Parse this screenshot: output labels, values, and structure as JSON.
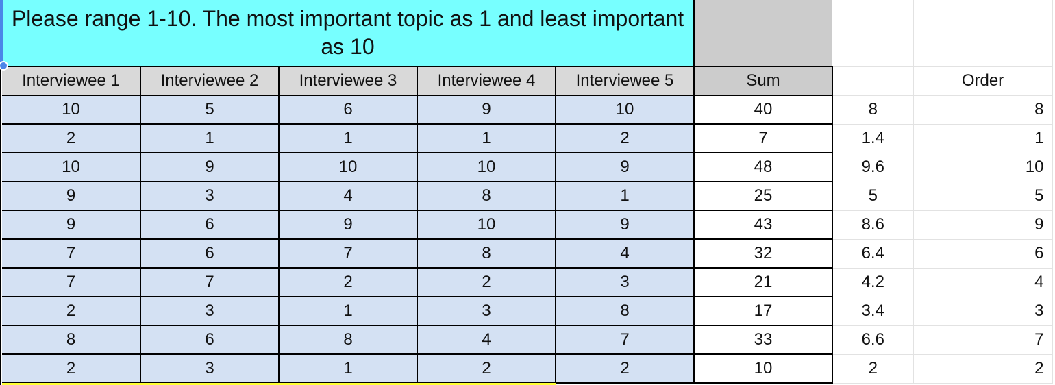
{
  "title": "Please range 1-10. The most important topic as 1 and least important as 10",
  "headers": {
    "interviewees": [
      "Interviewee 1",
      "Interviewee 2",
      "Interviewee 3",
      "Interviewee 4",
      "Interviewee 5"
    ],
    "sum": "Sum",
    "order": "Order"
  },
  "rows": [
    {
      "scores": [
        "10",
        "5",
        "6",
        "9",
        "10"
      ],
      "sum": "40",
      "average": "8",
      "order": "8"
    },
    {
      "scores": [
        "2",
        "1",
        "1",
        "1",
        "2"
      ],
      "sum": "7",
      "average": "1.4",
      "order": "1"
    },
    {
      "scores": [
        "10",
        "9",
        "10",
        "10",
        "9"
      ],
      "sum": "48",
      "average": "9.6",
      "order": "10"
    },
    {
      "scores": [
        "9",
        "3",
        "4",
        "8",
        "1"
      ],
      "sum": "25",
      "average": "5",
      "order": "5"
    },
    {
      "scores": [
        "9",
        "6",
        "9",
        "10",
        "9"
      ],
      "sum": "43",
      "average": "8.6",
      "order": "9"
    },
    {
      "scores": [
        "7",
        "6",
        "7",
        "8",
        "4"
      ],
      "sum": "32",
      "average": "6.4",
      "order": "6"
    },
    {
      "scores": [
        "7",
        "7",
        "2",
        "2",
        "3"
      ],
      "sum": "21",
      "average": "4.2",
      "order": "4"
    },
    {
      "scores": [
        "2",
        "3",
        "1",
        "3",
        "8"
      ],
      "sum": "17",
      "average": "3.4",
      "order": "3"
    },
    {
      "scores": [
        "8",
        "6",
        "8",
        "4",
        "7"
      ],
      "sum": "33",
      "average": "6.6",
      "order": "7"
    },
    {
      "scores": [
        "2",
        "3",
        "1",
        "2",
        "2"
      ],
      "sum": "10",
      "average": "2",
      "order": "2"
    }
  ],
  "colors": {
    "title_fill": "#77ffff",
    "header_fill": "#d9d9d9",
    "sum_header_fill": "#cccccc",
    "score_fill": "#d4e1f3",
    "selection": "#4a86e8"
  }
}
